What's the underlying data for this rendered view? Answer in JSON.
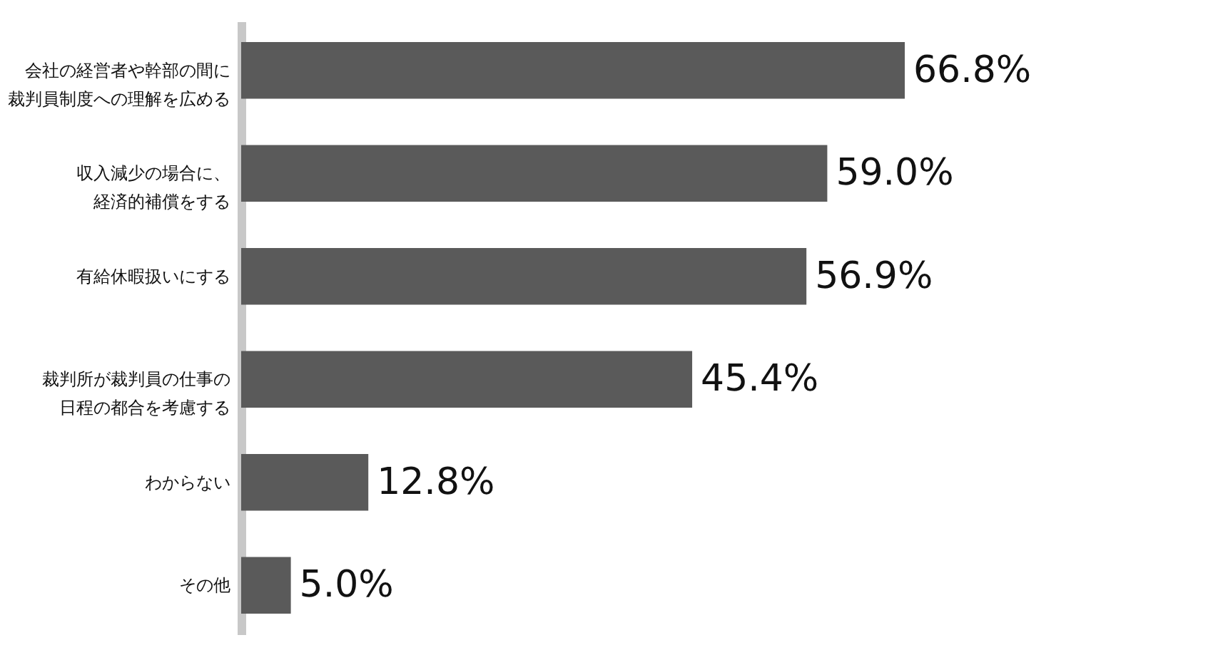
{
  "chart_data": {
    "type": "bar",
    "orientation": "horizontal",
    "categories": [
      "会社の経営者や幹部の間に裁判員制度への理解を広める",
      "収入減少の場合に、経済的補償をする",
      "有給休暇扱いにする",
      "裁判所が裁判員の仕事の日程の都合を考慮する",
      "わからない",
      "その他"
    ],
    "values": [
      66.8,
      59.0,
      56.9,
      45.4,
      12.8,
      5.0
    ],
    "value_labels": [
      "66.8%",
      "59.0%",
      "56.9%",
      "45.4%",
      "12.8%",
      "5.0%"
    ],
    "color": "#5a5a5a",
    "tick_labels": "y"
  }
}
